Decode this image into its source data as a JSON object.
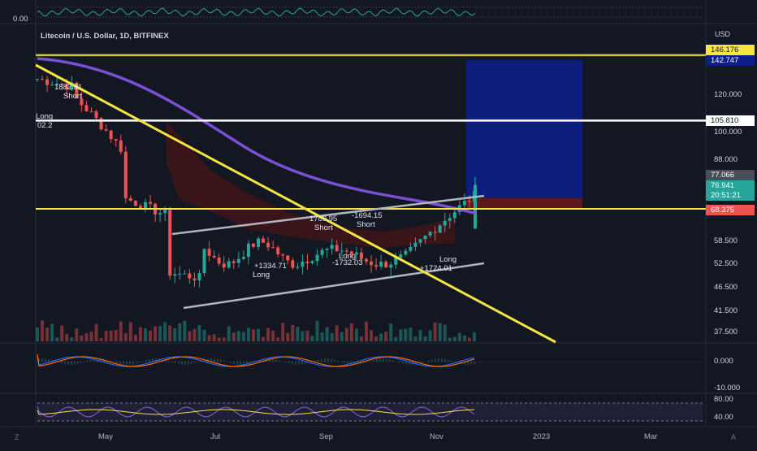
{
  "symbol_title": "Litecoin / U.S. Dollar, 1D, BITFINEX",
  "currency": "USD",
  "top_oscillator_value": "0.00",
  "corner_left": "Z",
  "corner_right": "A",
  "price_tags": {
    "level_yellow_top": "146.176",
    "level_blue": "142.747",
    "level_white": "105.810",
    "last_close": "77.066",
    "current_price": "76.941",
    "countdown": "20:51:21",
    "level_red": "68.375"
  },
  "colors": {
    "background": "#131722",
    "yellow": "#f5e642",
    "white": "#ffffff",
    "purple": "#7b4fd6",
    "bull": "#26a69a",
    "bear": "#ef5350",
    "target_zone": "#0d1e8c",
    "stop_zone": "#6b1a1a"
  },
  "chart_data": {
    "type": "candlestick",
    "title": "Litecoin / U.S. Dollar, 1D, BITFINEX",
    "y_axis_label": "USD",
    "y_ticks": [
      "120.000",
      "100.000",
      "88.000",
      "58.500",
      "52.500",
      "46.500",
      "41.500",
      "37.500"
    ],
    "x_ticks": [
      "May",
      "Jul",
      "Sep",
      "Nov",
      "2023",
      "Mar"
    ],
    "horizontal_levels": [
      146.176,
      105.81,
      68.375
    ],
    "position_tool": {
      "entry": 72.0,
      "target": 142.747,
      "stop": 68.375
    },
    "trade_labels": [
      {
        "text": "1882.81",
        "side": "Short"
      },
      {
        "text": "Long",
        "side": "Long"
      },
      {
        "text": "02.2",
        "side": "Long"
      },
      {
        "text": "1789.95",
        "side": "Short"
      },
      {
        "text": "-1694.15",
        "side": "Short"
      },
      {
        "text": "Long",
        "side": "Long"
      },
      {
        "text": "+1334.71",
        "side": "Long"
      },
      {
        "text": "Long",
        "side": "Long"
      },
      {
        "text": "-1732.03",
        "side": "Long"
      },
      {
        "text": "Long",
        "side": "Long"
      },
      {
        "text": "+1724.01",
        "side": "Long"
      }
    ],
    "macd_ticks": [
      "0.000",
      "-10.000"
    ],
    "rsi_ticks": [
      "80.00",
      "40.00"
    ]
  }
}
